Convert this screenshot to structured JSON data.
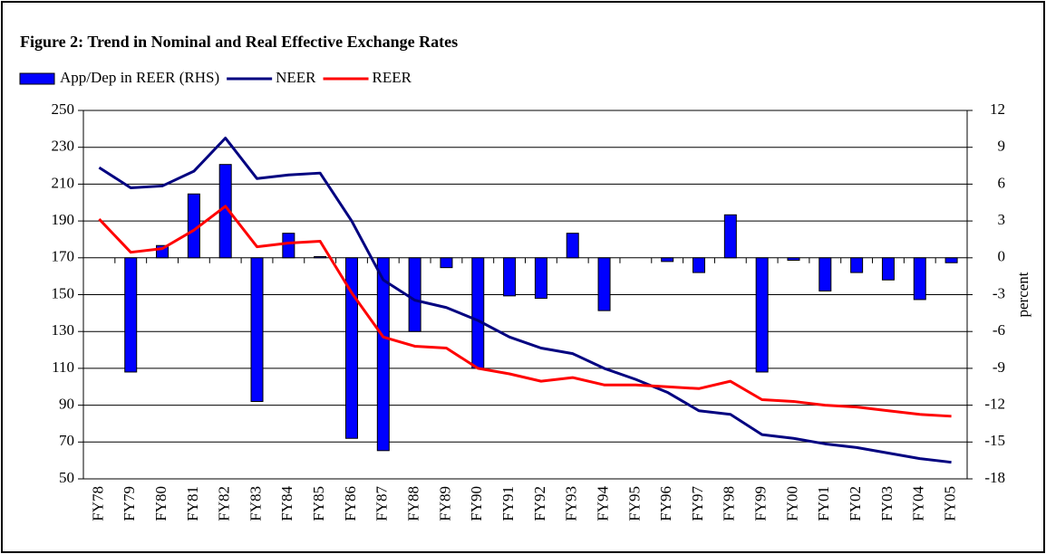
{
  "chart_data": {
    "type": "bar-line",
    "title": "Figure 2: Trend in Nominal and Real Effective Exchange Rates",
    "y2_label": "percent",
    "categories": [
      "FY78",
      "FY79",
      "FY80",
      "FY81",
      "FY82",
      "FY83",
      "FY84",
      "FY85",
      "FY86",
      "FY87",
      "FY88",
      "FY89",
      "FY90",
      "FY91",
      "FY92",
      "FY93",
      "FY94",
      "FY95",
      "FY96",
      "FY97",
      "FY98",
      "FY99",
      "FY00",
      "FY01",
      "FY02",
      "FY03",
      "FY04",
      "FY05"
    ],
    "series": [
      {
        "name": "App/Dep in REER (RHS)",
        "type": "bar",
        "axis": "y2",
        "color": "#0000ff",
        "values": [
          null,
          -9.3,
          1.0,
          5.2,
          7.6,
          -11.7,
          2.0,
          0.1,
          -14.7,
          -15.7,
          -6.0,
          -0.8,
          -9.0,
          -3.1,
          -3.3,
          2.0,
          -4.3,
          null,
          -0.3,
          -1.2,
          3.5,
          -9.3,
          -0.2,
          -2.7,
          -1.2,
          -1.8,
          -3.4,
          -0.4
        ]
      },
      {
        "name": "NEER",
        "type": "line",
        "color": "#000080",
        "values": [
          219,
          208,
          209,
          217,
          235,
          213,
          215,
          216,
          190,
          158,
          147,
          143,
          136,
          127,
          121,
          118,
          110,
          104,
          97,
          87,
          85,
          74,
          72,
          69,
          67,
          64,
          61,
          59
        ]
      },
      {
        "name": "REER",
        "type": "line",
        "color": "#ff0000",
        "values": [
          191,
          173,
          175,
          185,
          198,
          176,
          178,
          179,
          151,
          127,
          122,
          121,
          110,
          107,
          103,
          105,
          101,
          101,
          100,
          99,
          103,
          93,
          92,
          90,
          89,
          87,
          85,
          84
        ]
      }
    ],
    "ylim": [
      50,
      250
    ],
    "yticks": [
      50,
      70,
      90,
      110,
      130,
      150,
      170,
      190,
      210,
      230,
      250
    ],
    "y2lim": [
      -18,
      12
    ],
    "y2ticks": [
      -18,
      -15,
      -12,
      -9,
      -6,
      -3,
      0,
      3,
      6,
      9,
      12
    ],
    "grid": true
  }
}
